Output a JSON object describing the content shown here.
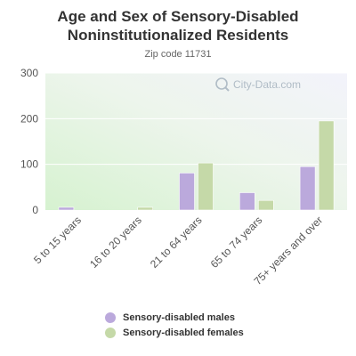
{
  "title": "Age and Sex of Sensory-Disabled Noninstitutionalized Residents",
  "subtitle": "Zip code 11731",
  "watermark": "City-Data.com",
  "chart_data": {
    "type": "bar",
    "categories": [
      "5 to 15 years",
      "16 to 20 years",
      "21 to 64 years",
      "65 to 74 years",
      "75+ years and over"
    ],
    "series": [
      {
        "name": "Sensory-disabled males",
        "color": "#bba9dc",
        "values": [
          6,
          0,
          81,
          38,
          95
        ]
      },
      {
        "name": "Sensory-disabled females",
        "color": "#c5d9a8",
        "values": [
          0,
          6,
          103,
          21,
          195
        ]
      }
    ],
    "ylim": [
      0,
      300
    ],
    "yticks": [
      0,
      100,
      200,
      300
    ],
    "grid": true,
    "legend_position": "bottom"
  }
}
